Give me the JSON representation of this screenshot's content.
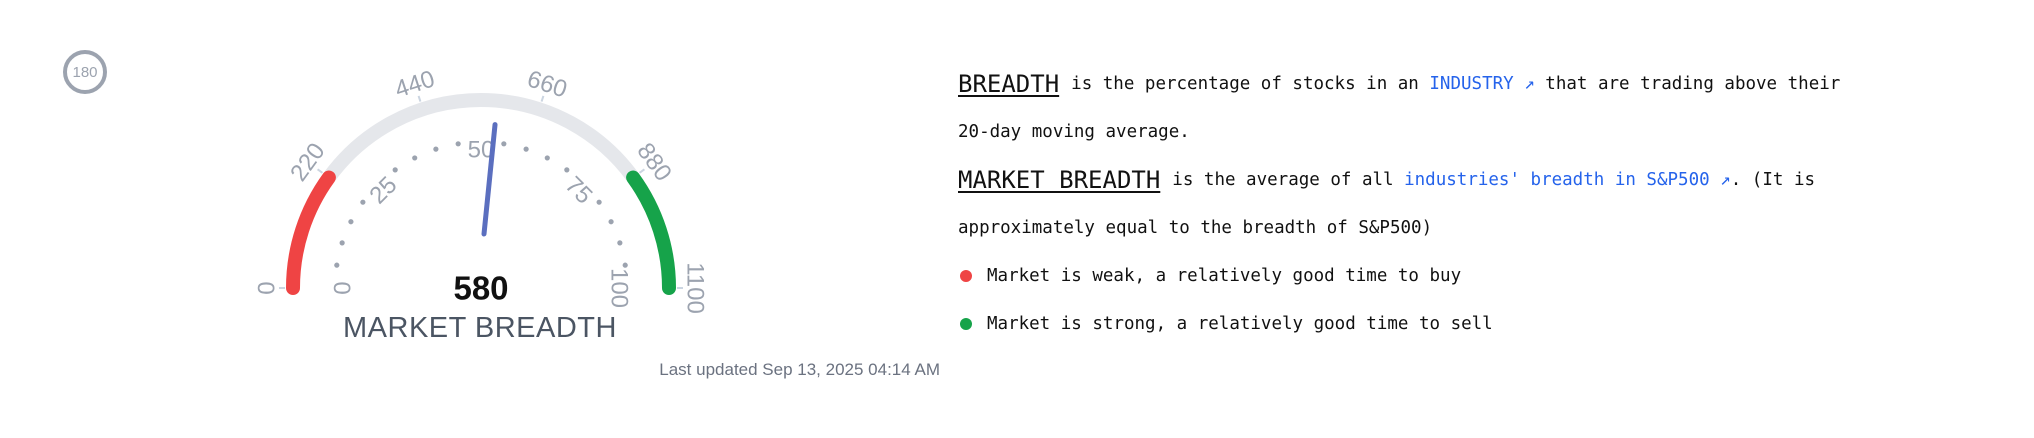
{
  "badge": {
    "value": "180"
  },
  "chart_data": {
    "type": "gauge",
    "title": "MARKET BREADTH",
    "value": 580,
    "value_label": "580",
    "outer_scale": {
      "min": 0,
      "max": 1100,
      "ticks": [
        "0",
        "220",
        "440",
        "660",
        "880",
        "1100"
      ]
    },
    "inner_scale": {
      "min": 0,
      "max": 100,
      "ticks": [
        "0",
        "25",
        "50",
        "75",
        "100"
      ]
    },
    "bands": [
      {
        "from": 0,
        "to": 220,
        "color": "#ef4444"
      },
      {
        "from": 220,
        "to": 880,
        "color": "#e5e7eb"
      },
      {
        "from": 880,
        "to": 1100,
        "color": "#16a34a"
      }
    ],
    "needle_color": "#5b6fbf"
  },
  "updated_label": "Last updated Sep 13, 2025 04:14 AM",
  "explanation": {
    "breadth_term": "BREADTH",
    "breadth_text_1": "is the percentage of stocks in an",
    "industry_link": "INDUSTRY ↗",
    "breadth_text_2": "that are trading above their",
    "breadth_text_3": "20-day moving average.",
    "market_term": "MARKET BREADTH",
    "market_text_1": "is the average of all",
    "market_link": "industries' breadth in S&P500 ↗",
    "market_text_2": ". (It is",
    "market_text_3": "approximately equal to the breadth of S&P500)"
  },
  "legend": [
    {
      "color": "#ef4444",
      "text": "Market is weak, a relatively good time to buy"
    },
    {
      "color": "#16a34a",
      "text": "Market is strong, a relatively good time to sell"
    }
  ]
}
